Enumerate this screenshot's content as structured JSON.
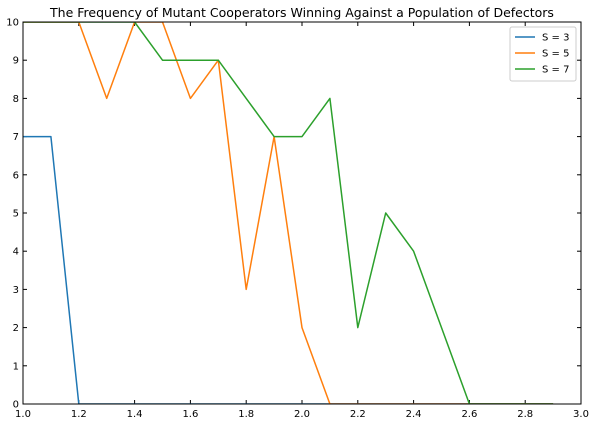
{
  "chart_data": {
    "type": "line",
    "title": "The Frequency of Mutant Cooperators Winning Against a Population of Defectors",
    "xlabel": "",
    "ylabel": "",
    "xlim": [
      1.0,
      3.0
    ],
    "ylim": [
      0,
      10
    ],
    "xticks": [
      "1.0",
      "1.2",
      "1.4",
      "1.6",
      "1.8",
      "2.0",
      "2.2",
      "2.4",
      "2.6",
      "2.8",
      "3.0"
    ],
    "yticks": [
      "0",
      "1",
      "2",
      "3",
      "4",
      "5",
      "6",
      "7",
      "8",
      "9",
      "10"
    ],
    "grid": false,
    "legend_position": "top-right",
    "x": [
      1.0,
      1.1,
      1.2,
      1.3,
      1.4,
      1.5,
      1.6,
      1.7,
      1.8,
      1.9,
      2.0,
      2.1,
      2.2,
      2.3,
      2.4,
      2.5,
      2.6,
      2.7,
      2.8,
      2.9
    ],
    "series": [
      {
        "name": "S = 3",
        "color": "#1f77b4",
        "values": [
          7,
          7,
          0,
          0,
          0,
          0,
          0,
          0,
          0,
          0,
          0,
          0,
          0,
          0,
          0,
          0,
          0,
          0,
          0,
          0
        ]
      },
      {
        "name": "S = 5",
        "color": "#ff7f0e",
        "values": [
          10,
          10,
          10,
          8,
          10,
          10,
          8,
          9,
          3,
          7,
          2,
          0,
          0,
          0,
          0,
          0,
          0,
          0,
          0,
          0
        ]
      },
      {
        "name": "S = 7",
        "color": "#2ca02c",
        "values": [
          10,
          10,
          10,
          10,
          10,
          9,
          9,
          9,
          8,
          7,
          7,
          8,
          2,
          5,
          4,
          2,
          0,
          0,
          0,
          0
        ]
      }
    ]
  }
}
